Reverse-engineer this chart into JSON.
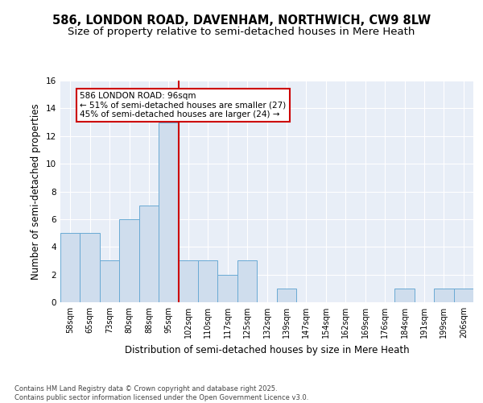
{
  "title1": "586, LONDON ROAD, DAVENHAM, NORTHWICH, CW9 8LW",
  "title2": "Size of property relative to semi-detached houses in Mere Heath",
  "xlabel": "Distribution of semi-detached houses by size in Mere Heath",
  "ylabel": "Number of semi-detached properties",
  "categories": [
    "58sqm",
    "65sqm",
    "73sqm",
    "80sqm",
    "88sqm",
    "95sqm",
    "102sqm",
    "110sqm",
    "117sqm",
    "125sqm",
    "132sqm",
    "139sqm",
    "147sqm",
    "154sqm",
    "162sqm",
    "169sqm",
    "176sqm",
    "184sqm",
    "191sqm",
    "199sqm",
    "206sqm"
  ],
  "values": [
    5,
    5,
    3,
    6,
    7,
    13,
    3,
    3,
    2,
    3,
    0,
    1,
    0,
    0,
    0,
    0,
    0,
    1,
    0,
    1,
    1
  ],
  "bar_color": "#cfdded",
  "bar_edge_color": "#6aaad4",
  "ylim": [
    0,
    16
  ],
  "yticks": [
    0,
    2,
    4,
    6,
    8,
    10,
    12,
    14,
    16
  ],
  "vline_color": "#cc0000",
  "annotation_title": "586 LONDON ROAD: 96sqm",
  "annotation_line1": "← 51% of semi-detached houses are smaller (27)",
  "annotation_line2": "45% of semi-detached houses are larger (24) →",
  "annotation_box_color": "#cc0000",
  "footer": "Contains HM Land Registry data © Crown copyright and database right 2025.\nContains public sector information licensed under the Open Government Licence v3.0.",
  "plot_bg_color": "#e8eef7",
  "fig_bg_color": "#ffffff",
  "grid_color": "#ffffff",
  "title_fontsize": 10.5,
  "subtitle_fontsize": 9.5,
  "tick_fontsize": 7,
  "ylabel_fontsize": 8.5,
  "xlabel_fontsize": 8.5,
  "footer_fontsize": 6,
  "annotation_fontsize": 7.5
}
